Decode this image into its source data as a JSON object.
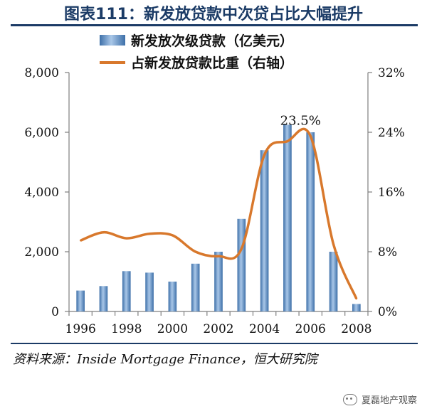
{
  "header": {
    "title": "图表111：新发放贷款中次贷占比大幅提升"
  },
  "footer": {
    "source": "资料来源：Inside Mortgage Finance，恒大研究院",
    "watermark": "夏磊地产观察"
  },
  "colors": {
    "bar": "#3d6fa8",
    "bar_highlight": "#a9c7e8",
    "line": "#d8782c",
    "title": "#1b3b66",
    "axis": "#7f7f7f"
  },
  "chart_data": {
    "type": "bar+line",
    "title": "图表111：新发放贷款中次贷占比大幅提升",
    "categories": [
      "1996",
      "1997",
      "1998",
      "1999",
      "2000",
      "2001",
      "2002",
      "2003",
      "2004",
      "2005",
      "2006",
      "2007",
      "2008"
    ],
    "series": [
      {
        "name": "新发放次级贷款（亿美元）",
        "type": "bar",
        "axis": "left",
        "values": [
          700,
          850,
          1350,
          1300,
          1000,
          1600,
          2000,
          3100,
          5400,
          6250,
          6000,
          2000,
          250
        ]
      },
      {
        "name": "占新发放贷款比重（右轴）",
        "type": "line",
        "axis": "right",
        "values": [
          9.5,
          10.6,
          9.8,
          10.4,
          10.2,
          8.0,
          7.4,
          8.4,
          21.0,
          22.8,
          23.5,
          9.0,
          1.7
        ]
      }
    ],
    "left_axis": {
      "ylim": [
        0,
        8000
      ],
      "ticks": [
        0,
        2000,
        4000,
        6000,
        8000
      ],
      "tick_labels": [
        "0",
        "2,000",
        "4,000",
        "6,000",
        "8,000"
      ]
    },
    "right_axis": {
      "ylim": [
        0,
        32
      ],
      "ticks": [
        0,
        8,
        16,
        24,
        32
      ],
      "tick_labels": [
        "0%",
        "8%",
        "16%",
        "24%",
        "32%"
      ]
    },
    "x_tick_labels": [
      "1996",
      "1998",
      "2000",
      "2002",
      "2004",
      "2006",
      "2008"
    ],
    "annotations": [
      {
        "text": "23.5%",
        "category": "2006",
        "series": 1
      }
    ],
    "legend": {
      "placement": "top-center",
      "entries": [
        "新发放次级贷款（亿美元）",
        "占新发放贷款比重（右轴）"
      ]
    },
    "grid": false
  }
}
